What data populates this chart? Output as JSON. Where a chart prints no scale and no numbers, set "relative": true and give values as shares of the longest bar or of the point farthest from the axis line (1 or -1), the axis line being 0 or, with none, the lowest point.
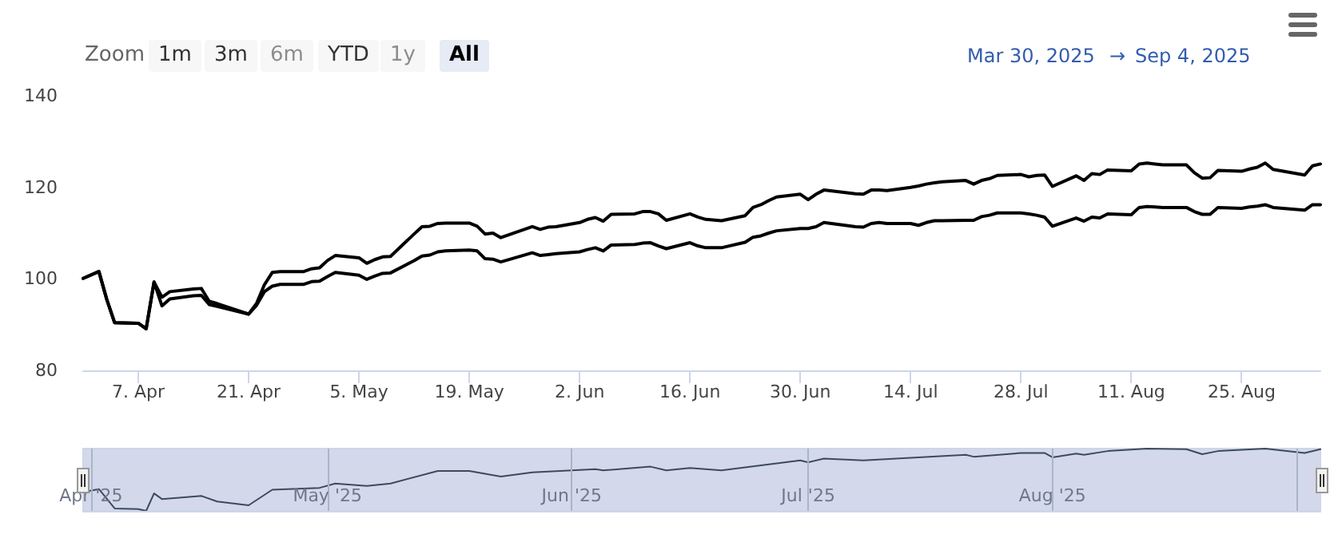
{
  "chart_data": [
    {
      "type": "line",
      "x": [
        "2025-03-31",
        "2025-04-02",
        "2025-04-03",
        "2025-04-04",
        "2025-04-07",
        "2025-04-08",
        "2025-04-09",
        "2025-04-10",
        "2025-04-11",
        "2025-04-14",
        "2025-04-15",
        "2025-04-16",
        "2025-04-17",
        "2025-04-21",
        "2025-04-22",
        "2025-04-23",
        "2025-04-24",
        "2025-04-25",
        "2025-04-28",
        "2025-04-29",
        "2025-04-30",
        "2025-05-01",
        "2025-05-02",
        "2025-05-05",
        "2025-05-06",
        "2025-05-07",
        "2025-05-08",
        "2025-05-09",
        "2025-05-12",
        "2025-05-13",
        "2025-05-14",
        "2025-05-15",
        "2025-05-16",
        "2025-05-19",
        "2025-05-20",
        "2025-05-21",
        "2025-05-22",
        "2025-05-23",
        "2025-05-27",
        "2025-05-28",
        "2025-05-29",
        "2025-05-30",
        "2025-06-02",
        "2025-06-03",
        "2025-06-04",
        "2025-06-05",
        "2025-06-06",
        "2025-06-09",
        "2025-06-10",
        "2025-06-11",
        "2025-06-12",
        "2025-06-13",
        "2025-06-16",
        "2025-06-17",
        "2025-06-18",
        "2025-06-20",
        "2025-06-23",
        "2025-06-24",
        "2025-06-25",
        "2025-06-26",
        "2025-06-27",
        "2025-06-30",
        "2025-07-01",
        "2025-07-02",
        "2025-07-03",
        "2025-07-07",
        "2025-07-08",
        "2025-07-09",
        "2025-07-10",
        "2025-07-11",
        "2025-07-14",
        "2025-07-15",
        "2025-07-16",
        "2025-07-17",
        "2025-07-18",
        "2025-07-21",
        "2025-07-22",
        "2025-07-23",
        "2025-07-24",
        "2025-07-25",
        "2025-07-28",
        "2025-07-29",
        "2025-07-30",
        "2025-07-31",
        "2025-08-01",
        "2025-08-04",
        "2025-08-05",
        "2025-08-06",
        "2025-08-07",
        "2025-08-08",
        "2025-08-11",
        "2025-08-12",
        "2025-08-13",
        "2025-08-14",
        "2025-08-15",
        "2025-08-18",
        "2025-08-19",
        "2025-08-20",
        "2025-08-21",
        "2025-08-22",
        "2025-08-25",
        "2025-08-26",
        "2025-08-27",
        "2025-08-28",
        "2025-08-29",
        "2025-09-02",
        "2025-09-03",
        "2025-09-04"
      ],
      "series": [
        {
          "color": "#000000",
          "values": [
            100.1,
            101.6,
            95.5,
            90.4,
            90.3,
            89.1,
            99.3,
            96.0,
            97.2,
            97.8,
            97.9,
            95.1,
            94.6,
            92.3,
            94.6,
            98.7,
            101.4,
            101.6,
            101.6,
            102.2,
            102.4,
            104.0,
            105.1,
            104.6,
            103.4,
            104.2,
            104.8,
            104.9,
            109.8,
            111.4,
            111.5,
            112.1,
            112.2,
            112.2,
            111.5,
            109.8,
            110.0,
            109.0,
            111.4,
            110.8,
            111.3,
            111.4,
            112.3,
            113.0,
            113.4,
            112.6,
            114.1,
            114.2,
            114.7,
            114.7,
            114.2,
            112.8,
            114.2,
            113.5,
            113.0,
            112.7,
            113.8,
            115.6,
            116.2,
            117.1,
            117.9,
            118.5,
            117.3,
            118.5,
            119.4,
            118.6,
            118.5,
            119.4,
            119.4,
            119.3,
            120.0,
            120.3,
            120.7,
            121.0,
            121.2,
            121.5,
            120.7,
            121.5,
            121.9,
            122.6,
            122.8,
            122.3,
            122.6,
            122.7,
            120.2,
            122.5,
            121.5,
            123.0,
            122.8,
            123.8,
            123.6,
            125.1,
            125.3,
            125.1,
            124.9,
            124.9,
            123.2,
            122.0,
            122.1,
            123.7,
            123.5,
            124.0,
            124.4,
            125.3,
            123.9,
            122.7,
            124.7,
            125.1
          ]
        },
        {
          "color": "#000000",
          "values": [
            100.1,
            101.6,
            95.5,
            90.4,
            90.3,
            89.1,
            99.3,
            94.1,
            95.6,
            96.3,
            96.4,
            94.4,
            94.0,
            92.3,
            94.2,
            97.2,
            98.4,
            98.8,
            98.8,
            99.4,
            99.5,
            100.5,
            101.4,
            100.8,
            99.9,
            100.6,
            101.2,
            101.3,
            104.0,
            105.0,
            105.2,
            105.9,
            106.1,
            106.3,
            106.1,
            104.4,
            104.3,
            103.7,
            105.7,
            105.1,
            105.3,
            105.5,
            105.9,
            106.4,
            106.8,
            106.1,
            107.4,
            107.5,
            107.8,
            107.9,
            107.2,
            106.6,
            107.9,
            107.2,
            106.8,
            106.8,
            108.0,
            109.1,
            109.4,
            110.0,
            110.5,
            111.0,
            111.0,
            111.4,
            112.3,
            111.4,
            111.3,
            112.1,
            112.3,
            112.1,
            112.1,
            111.7,
            112.3,
            112.7,
            112.7,
            112.8,
            112.8,
            113.6,
            113.9,
            114.4,
            114.4,
            114.2,
            113.9,
            113.5,
            111.5,
            113.3,
            112.6,
            113.5,
            113.3,
            114.2,
            114.0,
            115.6,
            115.8,
            115.7,
            115.6,
            115.6,
            114.7,
            114.1,
            114.1,
            115.6,
            115.4,
            115.7,
            115.9,
            116.2,
            115.6,
            115.0,
            116.2,
            116.2
          ]
        }
      ],
      "xlim": [
        "2025-03-31",
        "2025-09-04"
      ],
      "xticks": [
        {
          "value": "2025-04-07",
          "label": "7. Apr"
        },
        {
          "value": "2025-04-21",
          "label": "21. Apr"
        },
        {
          "value": "2025-05-05",
          "label": "5. May"
        },
        {
          "value": "2025-05-19",
          "label": "19. May"
        },
        {
          "value": "2025-06-02",
          "label": "2. Jun"
        },
        {
          "value": "2025-06-16",
          "label": "16. Jun"
        },
        {
          "value": "2025-06-30",
          "label": "30. Jun"
        },
        {
          "value": "2025-07-14",
          "label": "14. Jul"
        },
        {
          "value": "2025-07-28",
          "label": "28. Jul"
        },
        {
          "value": "2025-08-11",
          "label": "11. Aug"
        },
        {
          "value": "2025-08-25",
          "label": "25. Aug"
        }
      ],
      "ylim": [
        80,
        140
      ],
      "yticks": [
        80,
        100,
        120,
        140
      ],
      "grid": false,
      "marker": "none",
      "annotations": [
        "Zoom",
        "1m",
        "3m",
        "6m",
        "YTD",
        "1y",
        "All",
        "Mar 30, 2025",
        "→",
        "Sep 4, 2025"
      ]
    },
    {
      "type": "line",
      "relative": true,
      "x": [
        "2025-03-31",
        "2025-04-02",
        "2025-04-04",
        "2025-04-07",
        "2025-04-08",
        "2025-04-09",
        "2025-04-10",
        "2025-04-15",
        "2025-04-17",
        "2025-04-21",
        "2025-04-24",
        "2025-04-30",
        "2025-05-02",
        "2025-05-06",
        "2025-05-09",
        "2025-05-15",
        "2025-05-19",
        "2025-05-23",
        "2025-05-27",
        "2025-06-04",
        "2025-06-05",
        "2025-06-11",
        "2025-06-13",
        "2025-06-16",
        "2025-06-20",
        "2025-06-30",
        "2025-07-01",
        "2025-07-03",
        "2025-07-08",
        "2025-07-21",
        "2025-07-22",
        "2025-07-28",
        "2025-07-31",
        "2025-08-01",
        "2025-08-04",
        "2025-08-05",
        "2025-08-08",
        "2025-08-13",
        "2025-08-18",
        "2025-08-20",
        "2025-08-22",
        "2025-08-28",
        "2025-09-02",
        "2025-09-04"
      ],
      "series": [
        {
          "color": "#3d4a5c",
          "values": [
            0.3,
            0.35,
            0.04,
            0.03,
            0,
            0.28,
            0.19,
            0.24,
            0.15,
            0.09,
            0.34,
            0.37,
            0.44,
            0.4,
            0.44,
            0.64,
            0.64,
            0.55,
            0.62,
            0.67,
            0.65,
            0.71,
            0.65,
            0.69,
            0.65,
            0.81,
            0.78,
            0.84,
            0.81,
            0.9,
            0.87,
            0.93,
            0.93,
            0.86,
            0.92,
            0.9,
            0.96,
            1,
            0.99,
            0.91,
            0.96,
            1,
            0.93,
            0.99
          ]
        }
      ],
      "xlim": [
        "2025-03-31",
        "2025-09-04"
      ],
      "xticks": [
        {
          "value": "2025-04-01",
          "label": "Apr '25"
        },
        {
          "value": "2025-05-01",
          "label": "May '25"
        },
        {
          "value": "2025-06-01",
          "label": "Jun '25"
        },
        {
          "value": "2025-07-01",
          "label": "Jul '25"
        },
        {
          "value": "2025-08-01",
          "label": "Aug '25"
        },
        {
          "value": "2025-09-01",
          "label": null
        }
      ],
      "tick_labels": "x",
      "grid": "x",
      "marker": "none"
    }
  ]
}
